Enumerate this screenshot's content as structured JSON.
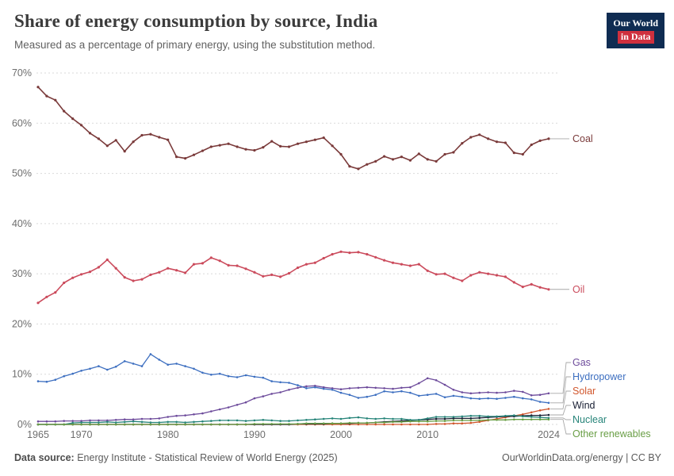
{
  "header": {
    "logo_line1": "Our World",
    "logo_line2": "in Data"
  },
  "footer": {
    "source_label": "Data source:",
    "source_text": "Energy Institute - Statistical Review of World Energy (2025)",
    "credit": "OurWorldinData.org/energy | CC BY"
  },
  "colors": {
    "background": "#ffffff",
    "grid": "#d9d9d9",
    "tick_text": "#6e6e6e",
    "connector": "#a8a8a8",
    "title_text": "#3b3b3b",
    "subtitle_text": "#616161",
    "footer_text": "#5b5b5b",
    "logo_bg": "#0f2c52",
    "logo_accent": "#cf303e"
  },
  "chart_data": {
    "type": "line",
    "title": "Share of energy consumption by source, India",
    "subtitle": "Measured as a percentage of primary energy, using the substitution method.",
    "xlabel": "",
    "ylabel": "",
    "ylim": [
      0,
      70
    ],
    "yticks": [
      0,
      10,
      20,
      30,
      40,
      50,
      60,
      70
    ],
    "ytick_format": "percent",
    "xticks": [
      1965,
      1970,
      1980,
      1990,
      2000,
      2010,
      2024
    ],
    "grid": "dashed-horizontal",
    "legend_position": "right-of-line-ends",
    "years": [
      1965,
      1966,
      1967,
      1968,
      1969,
      1970,
      1971,
      1972,
      1973,
      1974,
      1975,
      1976,
      1977,
      1978,
      1979,
      1980,
      1981,
      1982,
      1983,
      1984,
      1985,
      1986,
      1987,
      1988,
      1989,
      1990,
      1991,
      1992,
      1993,
      1994,
      1995,
      1996,
      1997,
      1998,
      1999,
      2000,
      2001,
      2002,
      2003,
      2004,
      2005,
      2006,
      2007,
      2008,
      2009,
      2010,
      2011,
      2012,
      2013,
      2014,
      2015,
      2016,
      2017,
      2018,
      2019,
      2020,
      2021,
      2022,
      2023,
      2024
    ],
    "series": [
      {
        "name": "Coal",
        "color": "#7a3a3a",
        "label_style": "inline",
        "values": [
          67.2,
          65.4,
          64.6,
          62.4,
          60.9,
          59.6,
          58.0,
          56.9,
          55.5,
          56.6,
          54.4,
          56.3,
          57.6,
          57.8,
          57.2,
          56.7,
          53.3,
          53.0,
          53.7,
          54.5,
          55.3,
          55.6,
          55.9,
          55.3,
          54.8,
          54.6,
          55.2,
          56.4,
          55.4,
          55.3,
          55.9,
          56.3,
          56.7,
          57.1,
          55.5,
          53.8,
          51.4,
          50.9,
          51.8,
          52.4,
          53.4,
          52.8,
          53.3,
          52.6,
          53.9,
          52.8,
          52.4,
          53.8,
          54.2,
          56.0,
          57.2,
          57.7,
          56.9,
          56.3,
          56.1,
          54.1,
          53.8,
          55.7,
          56.5,
          56.9
        ]
      },
      {
        "name": "Oil",
        "color": "#cb4b5c",
        "label_style": "inline",
        "values": [
          24.2,
          25.4,
          26.3,
          28.2,
          29.2,
          29.9,
          30.4,
          31.3,
          32.8,
          31.1,
          29.3,
          28.6,
          28.9,
          29.8,
          30.3,
          31.1,
          30.7,
          30.2,
          31.9,
          32.1,
          33.2,
          32.6,
          31.7,
          31.6,
          31.0,
          30.3,
          29.5,
          29.8,
          29.4,
          30.1,
          31.2,
          31.9,
          32.2,
          33.1,
          33.9,
          34.4,
          34.2,
          34.3,
          33.9,
          33.3,
          32.7,
          32.2,
          31.9,
          31.6,
          31.9,
          30.6,
          29.9,
          30.0,
          29.2,
          28.6,
          29.7,
          30.3,
          30.0,
          29.7,
          29.4,
          28.3,
          27.4,
          27.9,
          27.3,
          26.9
        ]
      },
      {
        "name": "Gas",
        "color": "#6d4b9b",
        "label_style": "cluster",
        "values": [
          0.6,
          0.6,
          0.6,
          0.7,
          0.7,
          0.7,
          0.8,
          0.8,
          0.8,
          0.9,
          1.0,
          1.0,
          1.1,
          1.1,
          1.2,
          1.5,
          1.7,
          1.8,
          2.0,
          2.2,
          2.6,
          3.0,
          3.4,
          3.9,
          4.4,
          5.2,
          5.6,
          6.1,
          6.4,
          6.9,
          7.3,
          7.6,
          7.7,
          7.4,
          7.2,
          7.0,
          7.2,
          7.3,
          7.4,
          7.3,
          7.2,
          7.1,
          7.3,
          7.4,
          8.2,
          9.2,
          8.8,
          7.9,
          6.9,
          6.4,
          6.2,
          6.3,
          6.4,
          6.3,
          6.4,
          6.7,
          6.5,
          5.8,
          5.9,
          6.2
        ]
      },
      {
        "name": "Hydropower",
        "color": "#3d6fc0",
        "label_style": "cluster",
        "values": [
          8.6,
          8.5,
          8.9,
          9.6,
          10.1,
          10.7,
          11.1,
          11.6,
          10.9,
          11.5,
          12.6,
          12.1,
          11.6,
          14.0,
          12.9,
          11.9,
          12.1,
          11.6,
          11.1,
          10.3,
          9.9,
          10.1,
          9.6,
          9.4,
          9.8,
          9.5,
          9.3,
          8.6,
          8.4,
          8.3,
          7.8,
          7.2,
          7.4,
          7.1,
          6.9,
          6.3,
          5.9,
          5.3,
          5.5,
          5.9,
          6.6,
          6.4,
          6.6,
          6.3,
          5.7,
          5.9,
          6.1,
          5.4,
          5.7,
          5.5,
          5.2,
          5.1,
          5.2,
          5.1,
          5.3,
          5.5,
          5.2,
          5.0,
          4.5,
          4.3
        ]
      },
      {
        "name": "Solar",
        "color": "#d1562c",
        "label_style": "cluster",
        "values": [
          0,
          0,
          0,
          0,
          0,
          0,
          0,
          0,
          0,
          0,
          0,
          0,
          0,
          0,
          0,
          0,
          0,
          0,
          0,
          0,
          0,
          0,
          0,
          0,
          0,
          0,
          0,
          0,
          0,
          0,
          0,
          0,
          0,
          0,
          0,
          0,
          0,
          0,
          0,
          0,
          0,
          0,
          0,
          0,
          0,
          0,
          0.1,
          0.1,
          0.2,
          0.2,
          0.3,
          0.5,
          0.8,
          1.1,
          1.4,
          1.7,
          2.0,
          2.4,
          2.8,
          3.1
        ]
      },
      {
        "name": "Wind",
        "color": "#191f33",
        "label_style": "cluster",
        "values": [
          0,
          0,
          0,
          0,
          0,
          0,
          0,
          0,
          0,
          0,
          0,
          0,
          0,
          0,
          0,
          0,
          0,
          0,
          0,
          0,
          0,
          0,
          0,
          0,
          0,
          0,
          0,
          0,
          0,
          0,
          0.1,
          0.1,
          0.1,
          0.1,
          0.2,
          0.2,
          0.2,
          0.3,
          0.3,
          0.4,
          0.5,
          0.6,
          0.7,
          0.8,
          0.9,
          1.0,
          1.1,
          1.1,
          1.2,
          1.2,
          1.2,
          1.3,
          1.4,
          1.5,
          1.6,
          1.6,
          1.7,
          1.8,
          1.8,
          1.9
        ]
      },
      {
        "name": "Nuclear",
        "color": "#268479",
        "label_style": "cluster",
        "values": [
          0,
          0,
          0,
          0,
          0.3,
          0.4,
          0.4,
          0.4,
          0.5,
          0.4,
          0.5,
          0.6,
          0.5,
          0.4,
          0.4,
          0.5,
          0.5,
          0.4,
          0.5,
          0.6,
          0.7,
          0.8,
          0.8,
          0.8,
          0.7,
          0.8,
          0.9,
          0.8,
          0.7,
          0.7,
          0.8,
          0.9,
          1.0,
          1.1,
          1.2,
          1.1,
          1.3,
          1.4,
          1.2,
          1.1,
          1.2,
          1.1,
          1.1,
          0.9,
          0.9,
          1.2,
          1.5,
          1.5,
          1.5,
          1.6,
          1.7,
          1.7,
          1.6,
          1.6,
          1.7,
          1.8,
          1.6,
          1.5,
          1.4,
          1.3
        ]
      },
      {
        "name": "Other renewables",
        "color": "#699e45",
        "label_style": "cluster",
        "values": [
          0,
          0,
          0,
          0,
          0,
          0,
          0,
          0,
          0,
          0,
          0,
          0,
          0,
          0,
          0,
          0,
          0,
          0,
          0,
          0,
          0,
          0,
          0,
          0,
          0,
          0.1,
          0.1,
          0.1,
          0.1,
          0.1,
          0.1,
          0.2,
          0.2,
          0.2,
          0.2,
          0.2,
          0.3,
          0.3,
          0.3,
          0.4,
          0.4,
          0.5,
          0.5,
          0.6,
          0.6,
          0.6,
          0.7,
          0.7,
          0.8,
          0.8,
          0.8,
          0.8,
          0.9,
          0.9,
          0.9,
          1.0,
          1.0,
          1.0,
          1.0,
          1.0
        ]
      }
    ]
  }
}
